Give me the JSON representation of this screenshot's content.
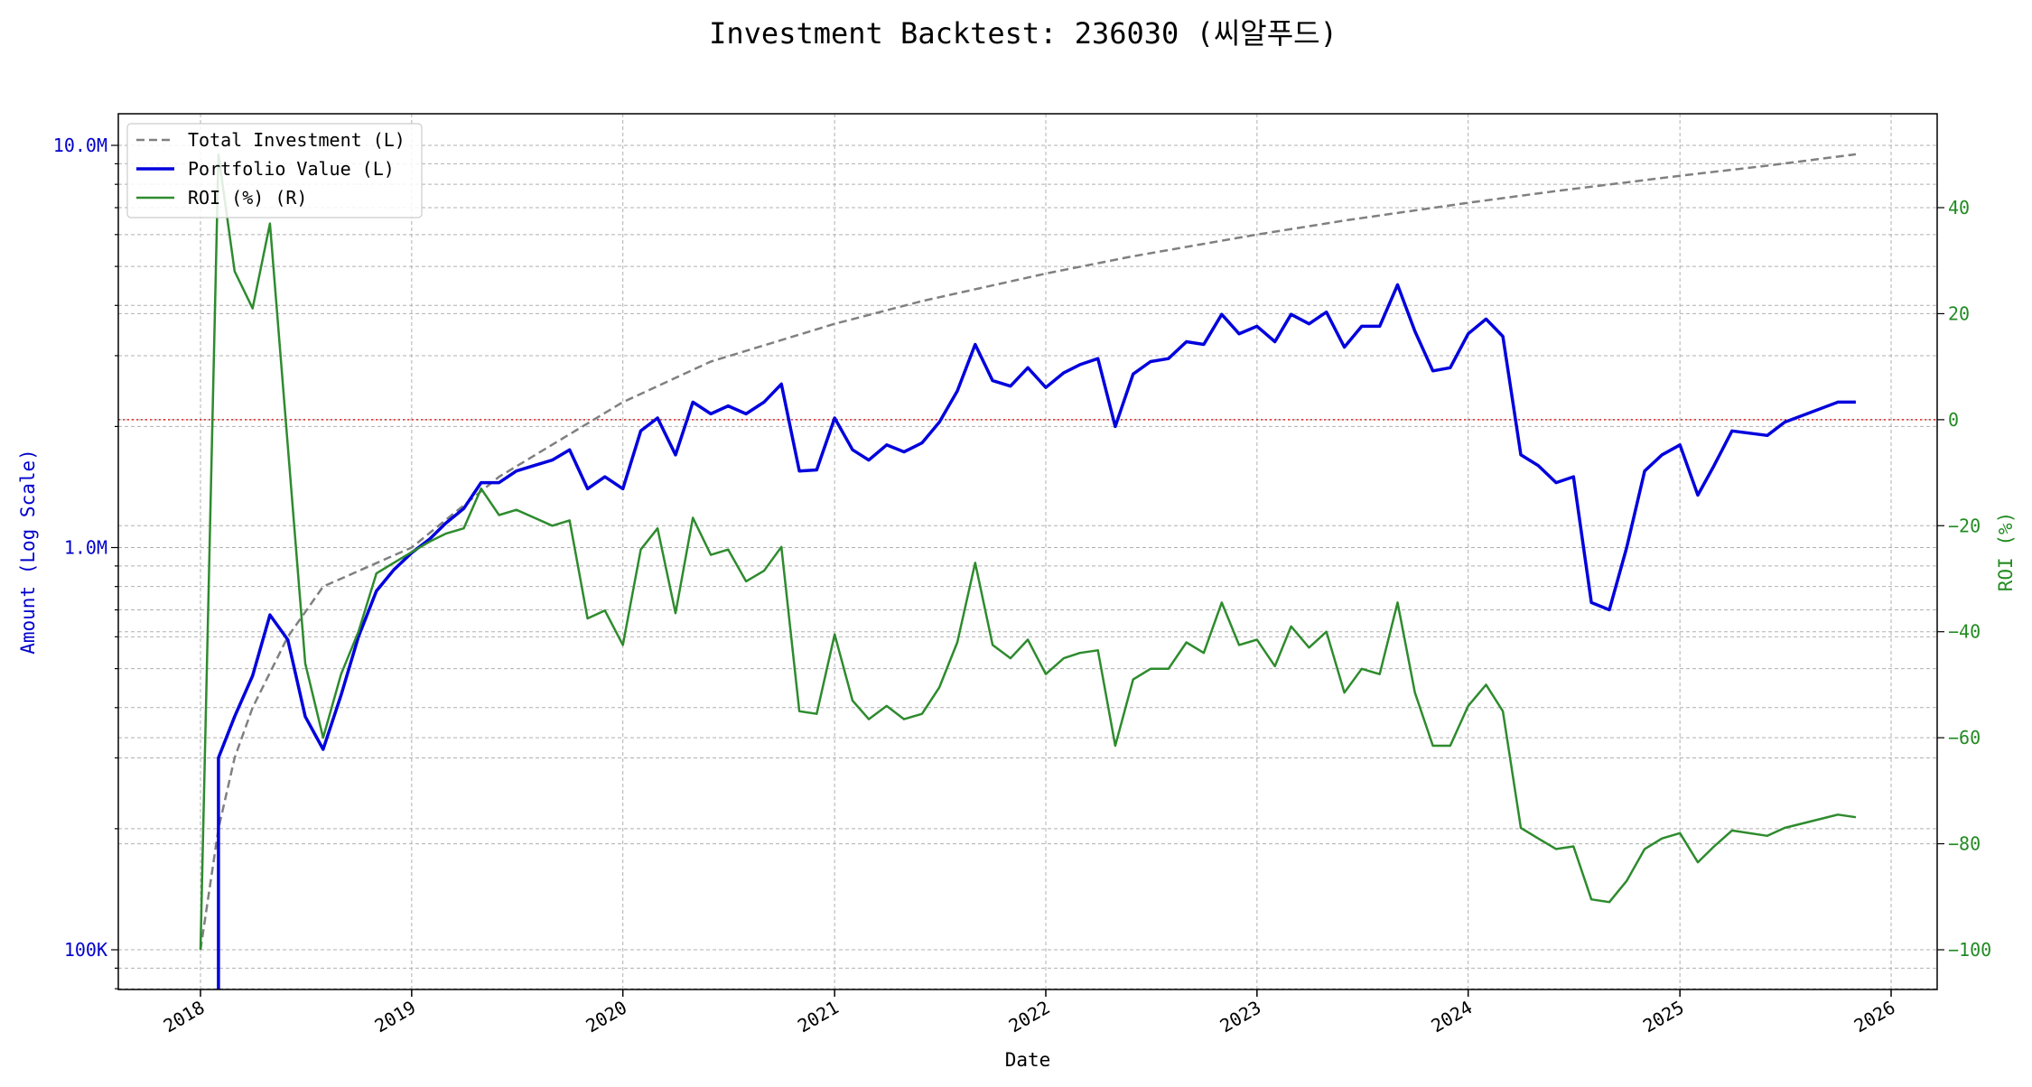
{
  "chart_data": {
    "type": "line",
    "title": "Investment Backtest: 236030 (씨알푸드)",
    "xlabel": "Date",
    "ylabel_left": "Amount (Log Scale)",
    "ylabel_right": "ROI (%)",
    "x_ticks": [
      "2018",
      "2019",
      "2020",
      "2021",
      "2022",
      "2023",
      "2024",
      "2025",
      "2026"
    ],
    "left_axis": {
      "scale": "log",
      "range": [
        80000,
        12000000
      ],
      "ticks": [
        100000,
        1000000,
        10000000
      ],
      "tick_labels": [
        "100K",
        "1.0M",
        "10.0M"
      ],
      "color": "#0000cc"
    },
    "right_axis": {
      "scale": "linear",
      "range": [
        -107,
        57
      ],
      "ticks": [
        -100,
        -80,
        -60,
        -40,
        -20,
        0,
        20,
        40
      ],
      "tick_labels": [
        "−100",
        "−80",
        "−60",
        "−40",
        "−20",
        "0",
        "20",
        "40"
      ],
      "color": "#228b22"
    },
    "grid": true,
    "legend_position": "top-left",
    "zero_roi_line": {
      "value": 0,
      "color": "#dd0000",
      "style": "dotted"
    },
    "series": [
      {
        "name": "Total Investment (L)",
        "axis": "left",
        "color": "#808080",
        "style": "dashed",
        "points": [
          [
            "2018-01-01",
            100000
          ],
          [
            "2018-02-01",
            200000
          ],
          [
            "2018-03-01",
            300000
          ],
          [
            "2018-04-01",
            400000
          ],
          [
            "2018-06-01",
            600000
          ],
          [
            "2018-08-01",
            800000
          ],
          [
            "2019-01-01",
            1000000
          ],
          [
            "2019-06-01",
            1500000
          ],
          [
            "2020-01-01",
            2300000
          ],
          [
            "2020-06-01",
            2900000
          ],
          [
            "2021-01-01",
            3600000
          ],
          [
            "2021-06-01",
            4100000
          ],
          [
            "2022-01-01",
            4800000
          ],
          [
            "2022-06-01",
            5300000
          ],
          [
            "2023-01-01",
            6000000
          ],
          [
            "2023-06-01",
            6500000
          ],
          [
            "2024-01-01",
            7200000
          ],
          [
            "2024-06-01",
            7700000
          ],
          [
            "2025-01-01",
            8400000
          ],
          [
            "2025-06-01",
            8900000
          ],
          [
            "2025-11-01",
            9500000
          ]
        ]
      },
      {
        "name": "Portfolio Value (L)",
        "axis": "left",
        "color": "#0000dd",
        "style": "solid",
        "points": [
          [
            "2018-02-01",
            50000
          ],
          [
            "2018-02-01",
            300000
          ],
          [
            "2018-03-01",
            380000
          ],
          [
            "2018-04-01",
            480000
          ],
          [
            "2018-05-01",
            680000
          ],
          [
            "2018-06-01",
            590000
          ],
          [
            "2018-07-01",
            380000
          ],
          [
            "2018-08-01",
            315000
          ],
          [
            "2018-09-01",
            430000
          ],
          [
            "2018-10-01",
            600000
          ],
          [
            "2018-11-01",
            780000
          ],
          [
            "2018-12-01",
            880000
          ],
          [
            "2019-01-01",
            970000
          ],
          [
            "2019-02-01",
            1050000
          ],
          [
            "2019-03-01",
            1150000
          ],
          [
            "2019-04-01",
            1250000
          ],
          [
            "2019-05-01",
            1450000
          ],
          [
            "2019-06-01",
            1450000
          ],
          [
            "2019-07-01",
            1550000
          ],
          [
            "2019-08-01",
            1600000
          ],
          [
            "2019-09-01",
            1650000
          ],
          [
            "2019-10-01",
            1750000
          ],
          [
            "2019-11-01",
            1400000
          ],
          [
            "2019-12-01",
            1500000
          ],
          [
            "2020-01-01",
            1400000
          ],
          [
            "2020-02-01",
            1950000
          ],
          [
            "2020-03-01",
            2100000
          ],
          [
            "2020-04-01",
            1700000
          ],
          [
            "2020-05-01",
            2300000
          ],
          [
            "2020-06-01",
            2150000
          ],
          [
            "2020-07-01",
            2250000
          ],
          [
            "2020-08-01",
            2150000
          ],
          [
            "2020-09-01",
            2300000
          ],
          [
            "2020-10-01",
            2550000
          ],
          [
            "2020-11-01",
            1550000
          ],
          [
            "2020-12-01",
            1560000
          ],
          [
            "2021-01-01",
            2100000
          ],
          [
            "2021-02-01",
            1750000
          ],
          [
            "2021-03-01",
            1650000
          ],
          [
            "2021-04-01",
            1800000
          ],
          [
            "2021-05-01",
            1730000
          ],
          [
            "2021-06-01",
            1820000
          ],
          [
            "2021-07-01",
            2050000
          ],
          [
            "2021-08-01",
            2450000
          ],
          [
            "2021-09-01",
            3200000
          ],
          [
            "2021-10-01",
            2600000
          ],
          [
            "2021-11-01",
            2520000
          ],
          [
            "2021-12-01",
            2800000
          ],
          [
            "2022-01-01",
            2500000
          ],
          [
            "2022-02-01",
            2720000
          ],
          [
            "2022-03-01",
            2850000
          ],
          [
            "2022-04-01",
            2950000
          ],
          [
            "2022-05-01",
            2000000
          ],
          [
            "2022-06-01",
            2700000
          ],
          [
            "2022-07-01",
            2900000
          ],
          [
            "2022-08-01",
            2950000
          ],
          [
            "2022-09-01",
            3250000
          ],
          [
            "2022-10-01",
            3200000
          ],
          [
            "2022-11-01",
            3800000
          ],
          [
            "2022-12-01",
            3400000
          ],
          [
            "2023-01-01",
            3550000
          ],
          [
            "2023-02-01",
            3250000
          ],
          [
            "2023-03-01",
            3800000
          ],
          [
            "2023-04-01",
            3600000
          ],
          [
            "2023-05-01",
            3850000
          ],
          [
            "2023-06-01",
            3150000
          ],
          [
            "2023-07-01",
            3550000
          ],
          [
            "2023-08-01",
            3550000
          ],
          [
            "2023-09-01",
            4500000
          ],
          [
            "2023-10-01",
            3450000
          ],
          [
            "2023-11-01",
            2750000
          ],
          [
            "2023-12-01",
            2800000
          ],
          [
            "2024-01-01",
            3400000
          ],
          [
            "2024-02-01",
            3700000
          ],
          [
            "2024-03-01",
            3350000
          ],
          [
            "2024-04-01",
            1700000
          ],
          [
            "2024-05-01",
            1600000
          ],
          [
            "2024-06-01",
            1450000
          ],
          [
            "2024-07-01",
            1500000
          ],
          [
            "2024-08-01",
            730000
          ],
          [
            "2024-09-01",
            700000
          ],
          [
            "2024-10-01",
            1000000
          ],
          [
            "2024-11-01",
            1550000
          ],
          [
            "2024-12-01",
            1700000
          ],
          [
            "2025-01-01",
            1800000
          ],
          [
            "2025-02-01",
            1350000
          ],
          [
            "2025-03-01",
            1600000
          ],
          [
            "2025-04-01",
            1950000
          ],
          [
            "2025-06-01",
            1900000
          ],
          [
            "2025-07-01",
            2050000
          ],
          [
            "2025-10-01",
            2300000
          ],
          [
            "2025-11-01",
            2300000
          ]
        ]
      },
      {
        "name": "ROI (%) (R)",
        "axis": "right",
        "color": "#2e8b2e",
        "style": "solid",
        "points": [
          [
            "2018-01-01",
            -100
          ],
          [
            "2018-02-01",
            50
          ],
          [
            "2018-03-01",
            28
          ],
          [
            "2018-04-01",
            21
          ],
          [
            "2018-05-01",
            37
          ],
          [
            "2018-06-01",
            -5
          ],
          [
            "2018-07-01",
            -46
          ],
          [
            "2018-08-01",
            -60
          ],
          [
            "2018-09-01",
            -48
          ],
          [
            "2018-10-01",
            -40
          ],
          [
            "2018-11-01",
            -29
          ],
          [
            "2018-12-01",
            -27
          ],
          [
            "2019-01-01",
            -25
          ],
          [
            "2019-02-01",
            -23
          ],
          [
            "2019-03-01",
            -21.5
          ],
          [
            "2019-04-01",
            -20.5
          ],
          [
            "2019-05-01",
            -13
          ],
          [
            "2019-06-01",
            -18
          ],
          [
            "2019-07-01",
            -17
          ],
          [
            "2019-08-01",
            -18.5
          ],
          [
            "2019-09-01",
            -20
          ],
          [
            "2019-10-01",
            -19
          ],
          [
            "2019-11-01",
            -37.5
          ],
          [
            "2019-12-01",
            -36
          ],
          [
            "2020-01-01",
            -42.5
          ],
          [
            "2020-02-01",
            -24.5
          ],
          [
            "2020-03-01",
            -20.5
          ],
          [
            "2020-04-01",
            -36.5
          ],
          [
            "2020-05-01",
            -18.5
          ],
          [
            "2020-06-01",
            -25.5
          ],
          [
            "2020-07-01",
            -24.5
          ],
          [
            "2020-08-01",
            -30.5
          ],
          [
            "2020-09-01",
            -28.5
          ],
          [
            "2020-10-01",
            -24
          ],
          [
            "2020-11-01",
            -55
          ],
          [
            "2020-12-01",
            -55.5
          ],
          [
            "2021-01-01",
            -40.5
          ],
          [
            "2021-02-01",
            -53
          ],
          [
            "2021-03-01",
            -56.5
          ],
          [
            "2021-04-01",
            -54
          ],
          [
            "2021-05-01",
            -56.5
          ],
          [
            "2021-06-01",
            -55.5
          ],
          [
            "2021-07-01",
            -50.5
          ],
          [
            "2021-08-01",
            -42
          ],
          [
            "2021-09-01",
            -27
          ],
          [
            "2021-10-01",
            -42.5
          ],
          [
            "2021-11-01",
            -45
          ],
          [
            "2021-12-01",
            -41.5
          ],
          [
            "2022-01-01",
            -48
          ],
          [
            "2022-02-01",
            -45
          ],
          [
            "2022-03-01",
            -44
          ],
          [
            "2022-04-01",
            -43.5
          ],
          [
            "2022-05-01",
            -61.5
          ],
          [
            "2022-06-01",
            -49
          ],
          [
            "2022-07-01",
            -47
          ],
          [
            "2022-08-01",
            -47
          ],
          [
            "2022-09-01",
            -42
          ],
          [
            "2022-10-01",
            -44
          ],
          [
            "2022-11-01",
            -34.5
          ],
          [
            "2022-12-01",
            -42.5
          ],
          [
            "2023-01-01",
            -41.5
          ],
          [
            "2023-02-01",
            -46.5
          ],
          [
            "2023-03-01",
            -39
          ],
          [
            "2023-04-01",
            -43
          ],
          [
            "2023-05-01",
            -40
          ],
          [
            "2023-06-01",
            -51.5
          ],
          [
            "2023-07-01",
            -47
          ],
          [
            "2023-08-01",
            -48
          ],
          [
            "2023-09-01",
            -34.5
          ],
          [
            "2023-10-01",
            -51.5
          ],
          [
            "2023-11-01",
            -61.5
          ],
          [
            "2023-12-01",
            -61.5
          ],
          [
            "2024-01-01",
            -54
          ],
          [
            "2024-02-01",
            -50
          ],
          [
            "2024-03-01",
            -55
          ],
          [
            "2024-04-01",
            -77
          ],
          [
            "2024-05-01",
            -79
          ],
          [
            "2024-06-01",
            -81
          ],
          [
            "2024-07-01",
            -80.5
          ],
          [
            "2024-08-01",
            -90.5
          ],
          [
            "2024-09-01",
            -91
          ],
          [
            "2024-10-01",
            -87
          ],
          [
            "2024-11-01",
            -81
          ],
          [
            "2024-12-01",
            -79
          ],
          [
            "2025-01-01",
            -78
          ],
          [
            "2025-02-01",
            -83.5
          ],
          [
            "2025-03-01",
            -80.5
          ],
          [
            "2025-04-01",
            -77.5
          ],
          [
            "2025-06-01",
            -78.5
          ],
          [
            "2025-07-01",
            -77
          ],
          [
            "2025-10-01",
            -74.5
          ],
          [
            "2025-11-01",
            -75
          ]
        ]
      }
    ]
  }
}
